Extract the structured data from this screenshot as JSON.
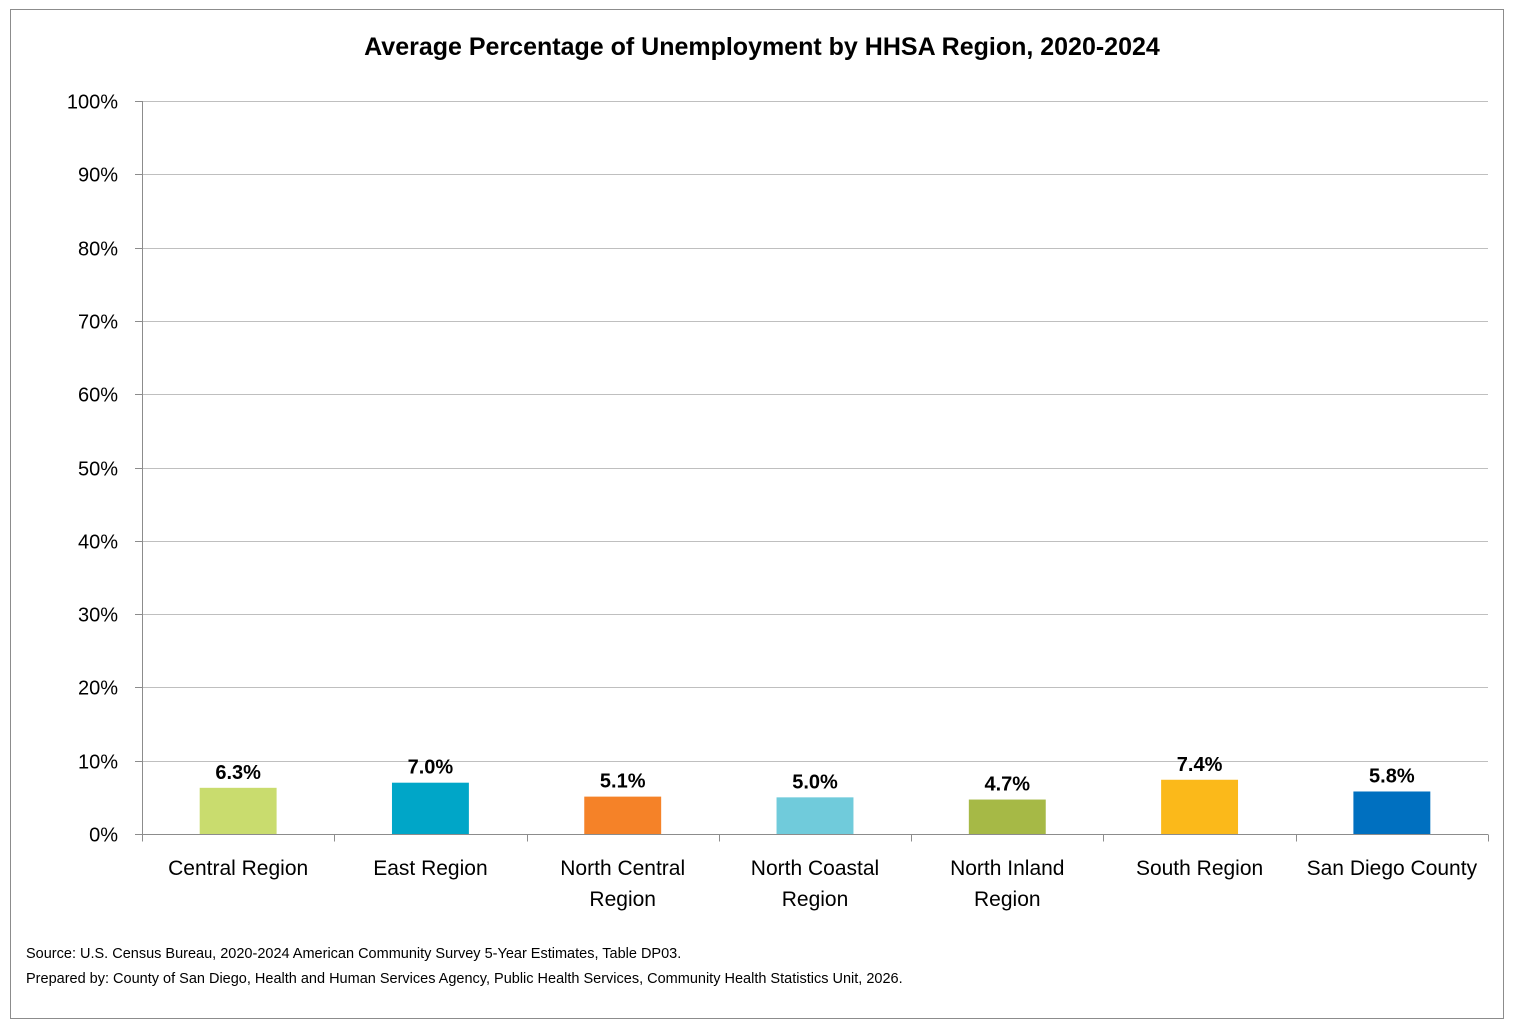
{
  "chart_data": {
    "type": "bar",
    "title": "Average Percentage of Unemployment by HHSA Region, 2020-2024",
    "categories": [
      [
        "Central Region"
      ],
      [
        "East Region"
      ],
      [
        "North Central",
        "Region"
      ],
      [
        "North Coastal",
        "Region"
      ],
      [
        "North Inland",
        "Region"
      ],
      [
        "South Region"
      ],
      [
        "San Diego County"
      ]
    ],
    "values": [
      6.3,
      7.0,
      5.1,
      5.0,
      4.7,
      7.4,
      5.8
    ],
    "data_labels": [
      "6.3%",
      "7.0%",
      "5.1%",
      "5.0%",
      "4.7%",
      "7.4%",
      "5.8%"
    ],
    "bar_colors": [
      "#c9dc6e",
      "#00a6c8",
      "#f58228",
      "#70cbdb",
      "#a6b946",
      "#fbb91a",
      "#0070c0"
    ],
    "ylim": [
      0,
      100
    ],
    "yticks": [
      0,
      10,
      20,
      30,
      40,
      50,
      60,
      70,
      80,
      90,
      100
    ],
    "ytick_labels": [
      "0%",
      "10%",
      "20%",
      "30%",
      "40%",
      "50%",
      "60%",
      "70%",
      "80%",
      "90%",
      "100%"
    ],
    "grid": true,
    "legend": "none"
  },
  "footnotes": {
    "source": "Source: U.S. Census Bureau, 2020-2024 American Community Survey 5-Year Estimates, Table DP03.",
    "prepared": "Prepared by: County of San Diego, Health and Human Services Agency, Public Health Services, Community Health Statistics Unit, 2026."
  }
}
